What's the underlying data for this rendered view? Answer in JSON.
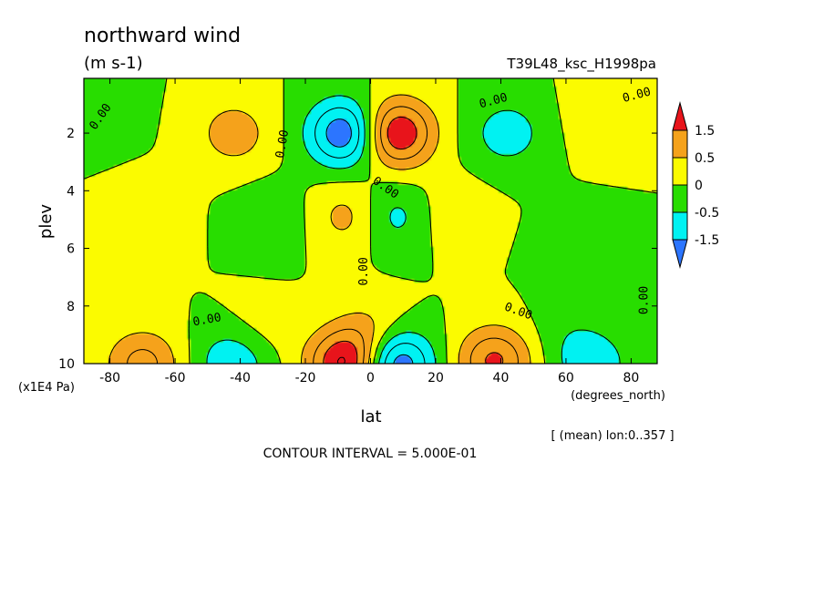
{
  "chart_data": {
    "type": "heatmap",
    "title": "northward wind",
    "units": "(m s-1)",
    "experiment": "T39L48_ksc_H1998pa",
    "xlabel": "lat",
    "x_units": "(degrees_north)",
    "ylabel": "plev",
    "y_units": "(x1E4 Pa)",
    "xlim": [
      -88,
      88
    ],
    "ylim": [
      0.1,
      10
    ],
    "y_inverted": true,
    "xticks": [
      -80,
      -60,
      -40,
      -20,
      0,
      20,
      40,
      60,
      80
    ],
    "xtick_labels": [
      "-80",
      "-60",
      "-40",
      "-20",
      "0",
      "20",
      "40",
      "60",
      "80"
    ],
    "yticks": [
      2,
      4,
      6,
      8,
      10
    ],
    "ytick_labels": [
      "2",
      "4",
      "6",
      "8",
      "10"
    ],
    "averaging_note": "[ (mean) lon:0..357 ]",
    "contour_interval_text": "CONTOUR INTERVAL = 5.000E-01",
    "zero_contour_label": "0.00",
    "colorbar": {
      "labels": [
        "1.5",
        "0.5",
        "0",
        "-0.5",
        "-1.5"
      ],
      "colors": [
        "#e8141b",
        "#f5a21b",
        "#fbfb00",
        "#28dd00",
        "#00f2f2",
        "#2c75ff"
      ]
    },
    "features": [
      {
        "lat": 8,
        "plev": 2.0,
        "value": 2.1
      },
      {
        "lat": -8,
        "plev": 2.0,
        "value": -2.0
      },
      {
        "lat": -42,
        "plev": 2.0,
        "value": 0.8
      },
      {
        "lat": 42,
        "plev": 2.0,
        "value": -0.8
      },
      {
        "lat": -8,
        "plev": 10.0,
        "value": 2.1
      },
      {
        "lat": 8,
        "plev": 10.0,
        "value": -2.0
      },
      {
        "lat": -42,
        "plev": 9.9,
        "value": -1.0
      },
      {
        "lat": 38,
        "plev": 9.9,
        "value": 1.6
      },
      {
        "lat": -70,
        "plev": 10.0,
        "value": 1.2
      },
      {
        "lat": 68,
        "plev": 10.0,
        "value": -0.9
      },
      {
        "lat": -7,
        "plev": 4.9,
        "value": 0.7
      },
      {
        "lat": 7,
        "plev": 4.9,
        "value": -0.7
      },
      {
        "lat": -70,
        "plev": 5.0,
        "value": 0.35
      },
      {
        "lat": -30,
        "plev": 5.0,
        "value": -0.35
      },
      {
        "lat": 25,
        "plev": 4.8,
        "value": 0.35
      },
      {
        "lat": 65,
        "plev": 6.0,
        "value": -0.35
      },
      {
        "lat": 72,
        "plev": 1.5,
        "value": 0.35
      },
      {
        "lat": -85,
        "plev": 1.3,
        "value": -0.3
      },
      {
        "lat": 0,
        "plev": 8.9,
        "value": 0.6
      },
      {
        "lat": -35,
        "plev": 9.0,
        "value": 0.3
      },
      {
        "lat": 60,
        "plev": 8.8,
        "value": -0.25
      }
    ]
  }
}
